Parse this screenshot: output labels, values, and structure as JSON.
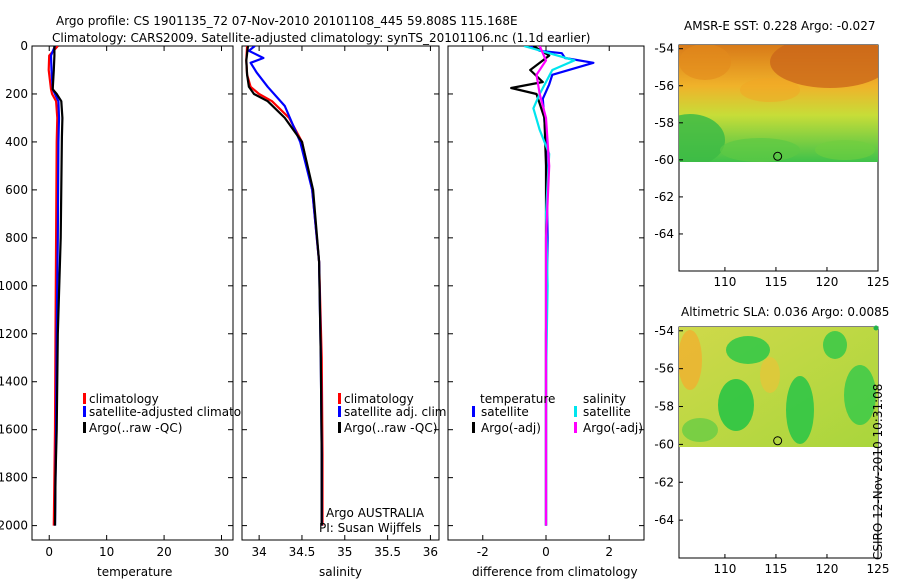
{
  "title_line1": "Argo profile: CS 1901135_72 07-Nov-2010 20101108_445 59.808S 115.168E",
  "title_line2": "Climatology: CARS2009. Satellite-adjusted climatology: synTS_20101106.nc (1.1d earlier)",
  "footer_text": "CSIRO 12-Nov-2010 10:31:08",
  "colors": {
    "clim": "#ff0000",
    "sat": "#0000ff",
    "argo": "#000000",
    "sal_sat": "#00e5ee",
    "sal_argo": "#ff00ff",
    "marker": "#000000"
  },
  "chart_data": [
    {
      "type": "line",
      "name": "temperature-profile",
      "xlabel": "temperature",
      "ylabel": "",
      "xlim": [
        -3,
        32
      ],
      "ylim": [
        2060,
        0
      ],
      "y_reversed": true,
      "xticks": [
        0,
        10,
        20,
        30
      ],
      "xtick_labels": [
        "0",
        "10",
        "20",
        "30"
      ],
      "yticks": [
        0,
        200,
        400,
        600,
        800,
        1000,
        1200,
        1400,
        1600,
        1800,
        2000
      ],
      "ytick_labels": [
        "0",
        "200",
        "400",
        "600",
        "800",
        "1000",
        "1200",
        "1400",
        "1600",
        "1800",
        "2000"
      ],
      "legend": {
        "placement": "lower-middle",
        "entries": [
          "climatology",
          "satellite-adjusted climatology",
          "Argo(..raw -QC)"
        ]
      },
      "series": [
        {
          "name": "climatology",
          "color": "clim",
          "x": [
            1.5,
            0.0,
            -0.1,
            0.3,
            0.5,
            1.2,
            1.4,
            1.3,
            1.2,
            1.1,
            1.0,
            0.9,
            0.8
          ],
          "y": [
            0,
            40,
            100,
            180,
            200,
            230,
            300,
            400,
            800,
            1200,
            1600,
            1800,
            2000
          ]
        },
        {
          "name": "satellite-adjusted climatology",
          "color": "sat",
          "x": [
            1.0,
            0.3,
            0.4,
            0.6,
            1.0,
            1.6,
            1.7,
            1.6,
            1.5,
            1.3,
            1.2,
            1.1,
            1.0
          ],
          "y": [
            0,
            40,
            100,
            180,
            200,
            230,
            300,
            400,
            800,
            1200,
            1600,
            1800,
            2000
          ]
        },
        {
          "name": "Argo(..raw -QC)",
          "color": "argo",
          "x": [
            0.9,
            0.9,
            0.8,
            0.6,
            1.3,
            2.1,
            2.3,
            2.2,
            2.0,
            1.5,
            1.3,
            1.1,
            1.0
          ],
          "y": [
            0,
            40,
            100,
            180,
            200,
            230,
            300,
            380,
            800,
            1200,
            1600,
            1800,
            2000
          ]
        }
      ]
    },
    {
      "type": "line",
      "name": "salinity-profile",
      "xlabel": "salinity",
      "ylabel": "",
      "xlim": [
        33.8,
        36.1
      ],
      "ylim": [
        2060,
        0
      ],
      "y_reversed": true,
      "xticks": [
        34,
        34.5,
        35,
        35.5,
        36
      ],
      "xtick_labels": [
        "34",
        "34.5",
        "35",
        "35.5",
        "36"
      ],
      "legend": {
        "placement": "lower-middle",
        "entries": [
          "climatology",
          "satellite adj. clim.",
          "Argo(..raw -QC)"
        ]
      },
      "annotations": [
        "Argo AUSTRALIA",
        "PI: Susan Wijffels"
      ],
      "series": [
        {
          "name": "climatology",
          "color": "clim",
          "x": [
            33.86,
            33.85,
            33.86,
            33.9,
            34.0,
            34.15,
            34.35,
            34.5,
            34.62,
            34.7,
            34.73,
            34.74,
            34.74
          ],
          "y": [
            0,
            60,
            120,
            170,
            200,
            230,
            300,
            400,
            600,
            900,
            1300,
            1700,
            2000
          ]
        },
        {
          "name": "satellite adj. clim.",
          "color": "sat",
          "x": [
            33.95,
            33.88,
            34.05,
            33.9,
            33.97,
            34.1,
            34.3,
            34.48,
            34.62,
            34.7,
            34.72,
            34.73,
            34.73
          ],
          "y": [
            0,
            20,
            50,
            70,
            110,
            170,
            250,
            400,
            600,
            900,
            1300,
            1700,
            2000
          ]
        },
        {
          "name": "Argo(..raw -QC)",
          "color": "argo",
          "x": [
            33.87,
            33.85,
            33.86,
            33.88,
            33.94,
            34.1,
            34.3,
            34.5,
            34.63,
            34.7,
            34.72,
            34.73,
            34.73
          ],
          "y": [
            0,
            60,
            120,
            170,
            200,
            230,
            300,
            400,
            600,
            900,
            1300,
            1700,
            2000
          ]
        }
      ]
    },
    {
      "type": "line",
      "name": "difference-profile",
      "xlabel": "difference from climatology",
      "ylabel": "",
      "xlim": [
        -3.1,
        3.1
      ],
      "ylim": [
        2060,
        0
      ],
      "y_reversed": true,
      "xticks": [
        -2,
        0,
        2
      ],
      "xtick_labels": [
        "-2",
        "0",
        "2"
      ],
      "legend": {
        "placement": "lower-middle",
        "headers": [
          "temperature",
          "salinity"
        ],
        "entries": [
          "satellite",
          "Argo(-adj)",
          "satellite",
          "Argo(-adj)"
        ]
      },
      "series": [
        {
          "name": "temperature satellite",
          "color": "sat",
          "x": [
            -0.5,
            -0.2,
            0.5,
            0.6,
            1.5,
            0.2,
            0.1,
            -0.1,
            0.0,
            0.05,
            0.0,
            0.0,
            0.0
          ],
          "y": [
            0,
            20,
            30,
            50,
            70,
            120,
            160,
            220,
            400,
            800,
            1200,
            1600,
            2000
          ]
        },
        {
          "name": "temperature Argo(-adj)",
          "color": "argo",
          "x": [
            -0.4,
            0.1,
            -0.5,
            -0.1,
            -1.1,
            -0.3,
            -0.2,
            -0.05,
            0.0,
            0.0,
            0.0,
            0.0,
            0.0
          ],
          "y": [
            0,
            40,
            100,
            150,
            175,
            200,
            240,
            300,
            500,
            800,
            1200,
            1600,
            2000
          ]
        },
        {
          "name": "salinity satellite",
          "color": "sal_sat",
          "x": [
            -0.7,
            0.1,
            0.9,
            0.2,
            -0.2,
            -0.4,
            -0.2,
            0.1,
            0.0,
            0.05,
            0.0,
            0.0,
            0.0
          ],
          "y": [
            0,
            30,
            60,
            100,
            200,
            260,
            350,
            450,
            700,
            1000,
            1400,
            1700,
            2000
          ]
        },
        {
          "name": "salinity Argo(-adj)",
          "color": "sal_argo",
          "x": [
            -0.2,
            0.0,
            -0.3,
            -0.2,
            0.0,
            0.1,
            0.0,
            0.0,
            0.0
          ],
          "y": [
            0,
            60,
            120,
            200,
            300,
            500,
            800,
            1300,
            2000
          ]
        }
      ]
    },
    {
      "type": "heatmap",
      "name": "amsr-sst-map",
      "title": "AMSR-E SST: 0.228 Argo: -0.027",
      "xlim": [
        105.5,
        125
      ],
      "ylim": [
        -66,
        -53.8
      ],
      "xticks": [
        110,
        115,
        120,
        125
      ],
      "xtick_labels": [
        "110",
        "115",
        "120",
        "125"
      ],
      "yticks": [
        -54,
        -56,
        -58,
        -60,
        -62,
        -64
      ],
      "ytick_labels": [
        "-54",
        "-56",
        "-58",
        "-60",
        "-62",
        "-64"
      ],
      "data_extent": {
        "lat_min": -60.2,
        "lat_max": -53.8
      },
      "marker": {
        "lon": 115.168,
        "lat": -59.808
      }
    },
    {
      "type": "heatmap",
      "name": "altimetric-sla-map",
      "title": "Altimetric SLA: 0.036 Argo: 0.0085",
      "xlim": [
        105.5,
        125
      ],
      "ylim": [
        -66,
        -53.8
      ],
      "xticks": [
        110,
        115,
        120,
        125
      ],
      "xtick_labels": [
        "110",
        "115",
        "120",
        "125"
      ],
      "yticks": [
        -54,
        -56,
        -58,
        -60,
        -62,
        -64
      ],
      "ytick_labels": [
        "-54",
        "-56",
        "-58",
        "-60",
        "-62",
        "-64"
      ],
      "data_extent": {
        "lat_min": -60.2,
        "lat_max": -53.8
      },
      "marker": {
        "lon": 115.168,
        "lat": -59.808
      }
    }
  ]
}
